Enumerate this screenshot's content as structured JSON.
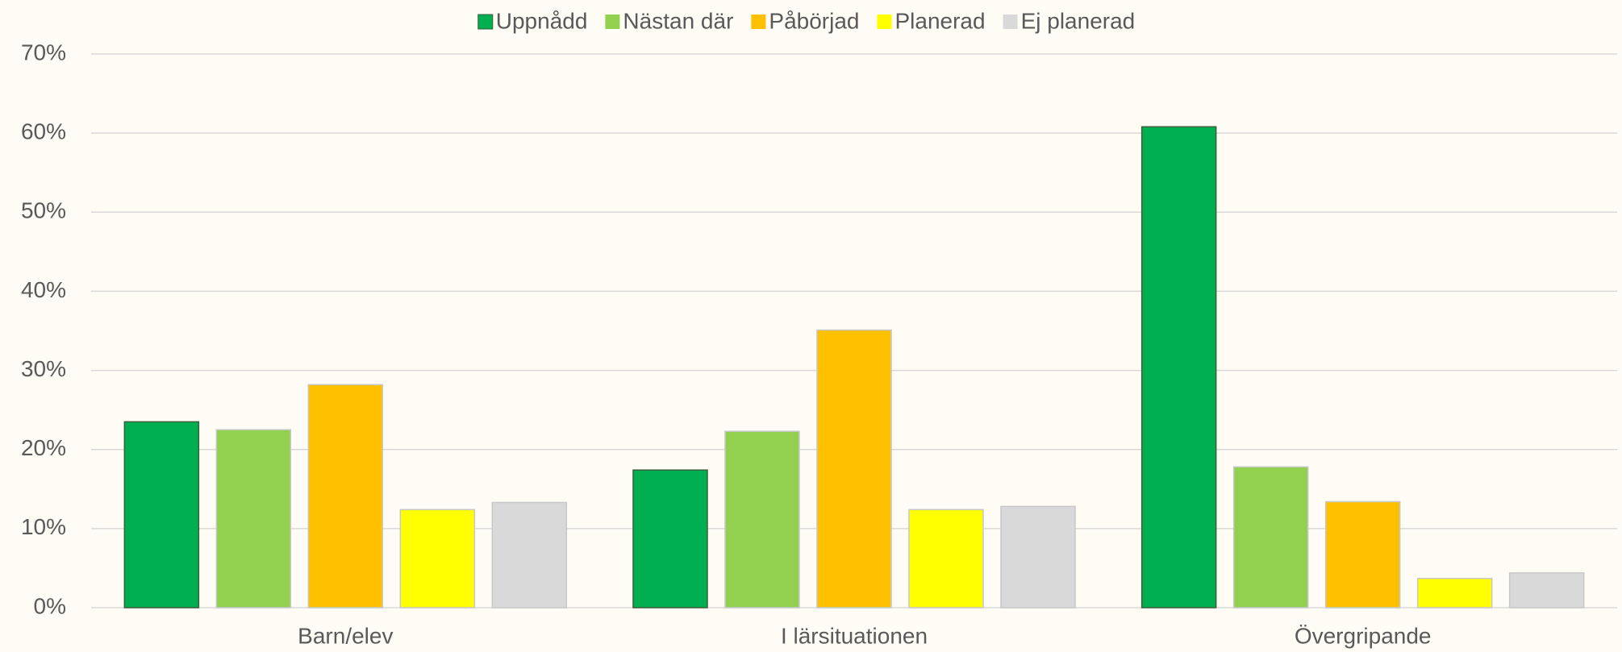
{
  "chart_data": {
    "type": "bar",
    "categories": [
      "Barn/elev",
      "I lärsituationen",
      "Övergripande"
    ],
    "series": [
      {
        "name": "Uppnådd",
        "color": "#00b050",
        "values": [
          23.5,
          17.4,
          60.8
        ]
      },
      {
        "name": "Nästan där",
        "color": "#92d050",
        "values": [
          22.5,
          22.3,
          17.8
        ]
      },
      {
        "name": "Påbörjad",
        "color": "#ffc000",
        "values": [
          28.2,
          35.1,
          13.4
        ]
      },
      {
        "name": "Planerad",
        "color": "#ffff00",
        "values": [
          12.4,
          12.4,
          3.7
        ]
      },
      {
        "name": "Ej planerad",
        "color": "#d9d9d9",
        "values": [
          13.3,
          12.8,
          4.4
        ]
      }
    ],
    "ylim": [
      0,
      70
    ],
    "yticks": [
      {
        "value": 0,
        "label": "0%"
      },
      {
        "value": 10,
        "label": "10%"
      },
      {
        "value": 20,
        "label": "20%"
      },
      {
        "value": 30,
        "label": "30%"
      },
      {
        "value": 40,
        "label": "40%"
      },
      {
        "value": 50,
        "label": "50%"
      },
      {
        "value": 60,
        "label": "60%"
      },
      {
        "value": 70,
        "label": "70%"
      }
    ],
    "grid": true,
    "legend": "top"
  }
}
